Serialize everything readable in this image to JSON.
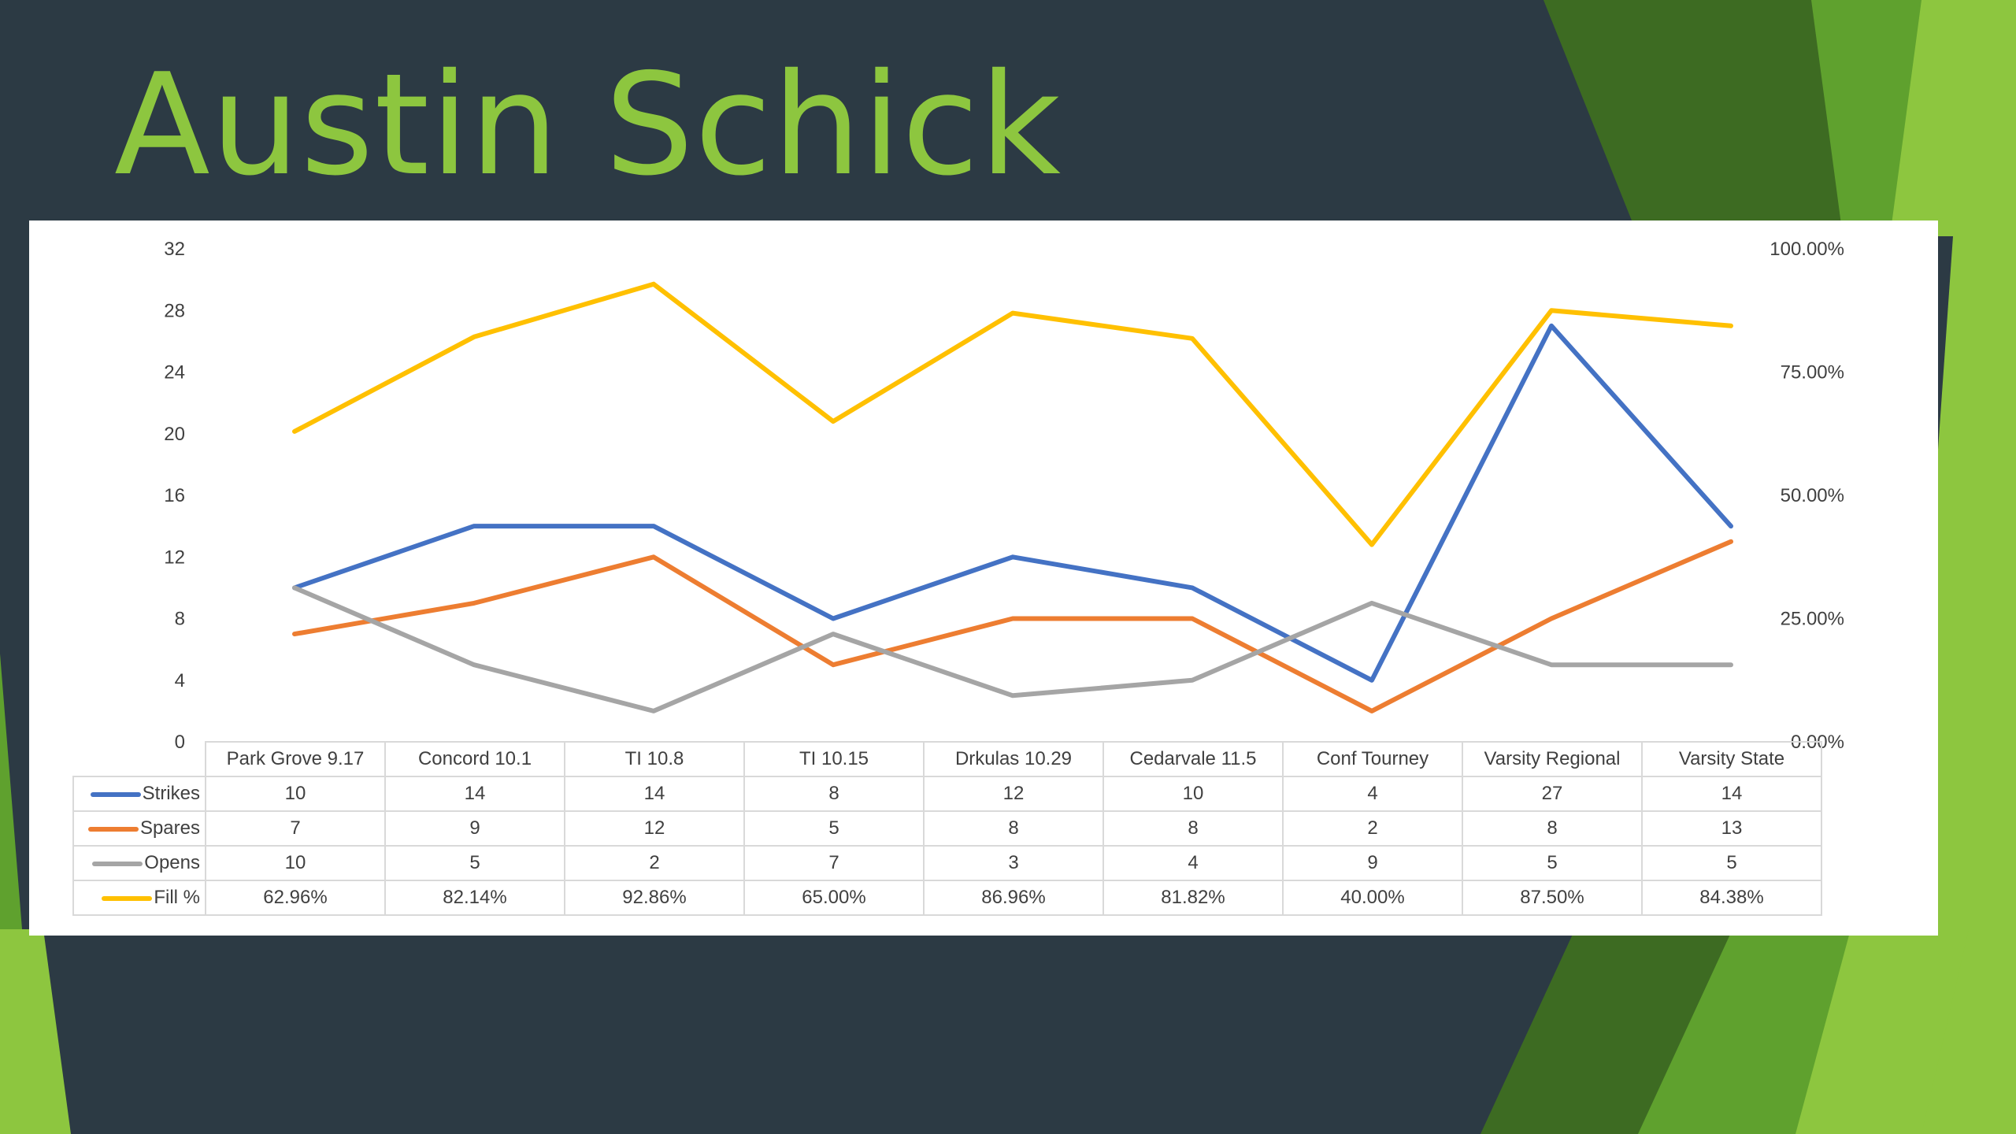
{
  "slide": {
    "title": "Austin Schick",
    "colors": {
      "background": "#2c3a44",
      "title": "#8dc63f",
      "accent_light": "#8dc63f",
      "accent_mid": "#5fa12e",
      "accent_dark": "#3d6b22"
    }
  },
  "chart_data": {
    "type": "line",
    "categories": [
      "Park Grove 9.17",
      "Concord 10.1",
      "TI 10.8",
      "TI 10.15",
      "Drkulas 10.29",
      "Cedarvale 11.5",
      "Conf Tourney",
      "Varsity Regional",
      "Varsity State"
    ],
    "series": [
      {
        "name": "Strikes",
        "axis": "left",
        "color": "#4472c4",
        "values": [
          10,
          14,
          14,
          8,
          12,
          10,
          4,
          27,
          14
        ],
        "labels": [
          "10",
          "14",
          "14",
          "8",
          "12",
          "10",
          "4",
          "27",
          "14"
        ]
      },
      {
        "name": "Spares",
        "axis": "left",
        "color": "#ed7d31",
        "values": [
          7,
          9,
          12,
          5,
          8,
          8,
          2,
          8,
          13
        ],
        "labels": [
          "7",
          "9",
          "12",
          "5",
          "8",
          "8",
          "2",
          "8",
          "13"
        ]
      },
      {
        "name": "Opens",
        "axis": "left",
        "color": "#a5a5a5",
        "values": [
          10,
          5,
          2,
          7,
          3,
          4,
          9,
          5,
          5
        ],
        "labels": [
          "10",
          "5",
          "2",
          "7",
          "3",
          "4",
          "9",
          "5",
          "5"
        ]
      },
      {
        "name": "Fill %",
        "axis": "right",
        "color": "#ffc000",
        "values": [
          62.96,
          82.14,
          92.86,
          65.0,
          86.96,
          81.82,
          40.0,
          87.5,
          84.38
        ],
        "labels": [
          "62.96%",
          "82.14%",
          "92.86%",
          "65.00%",
          "86.96%",
          "81.82%",
          "40.00%",
          "87.50%",
          "84.38%"
        ]
      }
    ],
    "y_left": {
      "ylim": [
        0,
        32
      ],
      "ticks": [
        "0",
        "4",
        "8",
        "12",
        "16",
        "20",
        "24",
        "28",
        "32"
      ]
    },
    "y_right": {
      "ylim": [
        0,
        100
      ],
      "ticks": [
        "0.00%",
        "25.00%",
        "50.00%",
        "75.00%",
        "100.00%"
      ]
    },
    "grid": false,
    "legend": "data-table"
  }
}
